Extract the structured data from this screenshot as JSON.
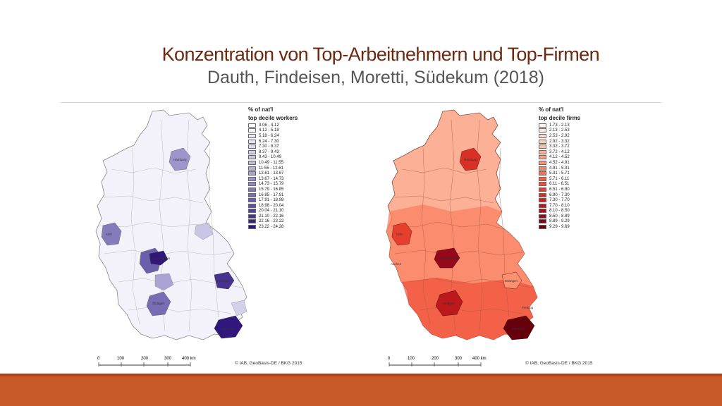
{
  "slide": {
    "title": "Konzentration von Top-Arbeitnehmern und Top-Firmen",
    "subtitle": "Dauth, Findeisen, Moretti, Südekum (2018)"
  },
  "maps": [
    {
      "legend_title_1": "% of nat'l",
      "legend_title_2": "top decile workers",
      "classes": [
        "3.06 - 4.12",
        "4.12 - 5.18",
        "5.18 - 6.24",
        "6.24 - 7.30",
        "7.30 - 8.37",
        "8.37 - 9.43",
        "9.43 - 10.49",
        "10.49 - 11.55",
        "11.55 - 12.61",
        "12.61 - 13.67",
        "13.67 - 14.73",
        "14.73 - 15.79",
        "15.79 - 16.85",
        "16.85 - 17.91",
        "17.91 - 18.98",
        "18.98 - 20.04",
        "20.04 - 21.10",
        "21.10 - 22.16",
        "22.16 - 23.22",
        "23.22 - 24.28"
      ],
      "colors": [
        "#ffffff",
        "#f7f6fc",
        "#efeef8",
        "#e6e4f3",
        "#dddbef",
        "#d3d0ea",
        "#c9c5e4",
        "#bfbadf",
        "#b4aed9",
        "#a9a2d2",
        "#9d95cb",
        "#9188c4",
        "#847bbc",
        "#786db4",
        "#6b5fac",
        "#5e50a3",
        "#52429a",
        "#463391",
        "#3b2587",
        "#30177d"
      ],
      "cities": [
        "Hamburg",
        "Köln",
        "Frankfurt/Main",
        "Erlangen",
        "Stuttgart",
        "München"
      ],
      "credit": "© IAB, GeoBasis-DE / BKG 2015",
      "scale_labels": [
        "0",
        "100",
        "200",
        "300",
        "400 km"
      ]
    },
    {
      "legend_title_1": "% of nat'l",
      "legend_title_2": "top decile firms",
      "classes": [
        "1.73 - 2.13",
        "2.13 - 2.53",
        "2.53 - 2.92",
        "2.92 - 3.32",
        "3.32 - 3.72",
        "3.72 - 4.12",
        "4.12 - 4.52",
        "4.52 - 4.91",
        "4.91 - 5.31",
        "5.31 - 5.71",
        "5.71 - 6.11",
        "6.11 - 6.51",
        "6.51 - 6.90",
        "6.90 - 7.30",
        "7.30 - 7.70",
        "7.70 - 8.10",
        "8.10 - 8.50",
        "8.50 - 8.89",
        "8.89 - 9.29",
        "9.29 - 9.69"
      ],
      "colors": [
        "#fff5f0",
        "#fee8de",
        "#fddccd",
        "#fccfbc",
        "#fcc1a9",
        "#fcb196",
        "#fca183",
        "#fb9171",
        "#fb8060",
        "#f86f50",
        "#f45f43",
        "#ee4f37",
        "#e53f2d",
        "#d93025",
        "#cc2420",
        "#bd181c",
        "#aa111b",
        "#96091a",
        "#7e0517",
        "#67000d"
      ],
      "cities": [
        "Hamburg",
        "Köln",
        "Frankfurt/Main",
        "Erlangen",
        "Stuttgart",
        "München",
        "Freising",
        "Aachen"
      ],
      "credit": "© IAB, GeoBasis-DE / BKG 2015",
      "scale_labels": [
        "0",
        "100",
        "200",
        "300",
        "400 km"
      ]
    }
  ]
}
